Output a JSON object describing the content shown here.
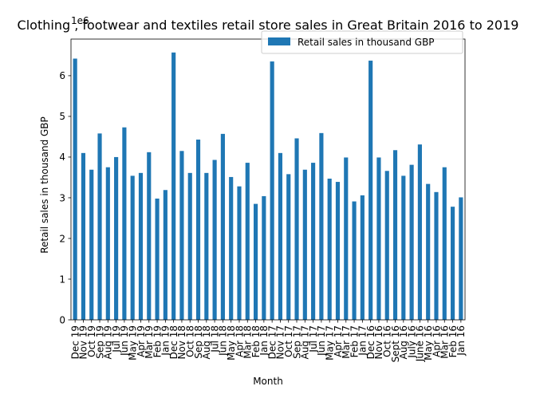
{
  "chart_data": {
    "type": "bar",
    "title": "Clothing , footwear and textiles retail store sales in Great Britain 2016 to 2019",
    "xlabel": "Month",
    "ylabel": "Retail sales in thousand GBP",
    "offset_text": "1e6",
    "ylim": [
      0,
      6900000
    ],
    "yticks": [
      0,
      1,
      2,
      3,
      4,
      5,
      6
    ],
    "grid": false,
    "legend_position": "top-right",
    "bar_color": "#1f77b4",
    "categories": [
      "Dec 19",
      "Nov 19",
      "Oct 19",
      "Sep 19",
      "Aug 19",
      "Jul 19",
      "Jun 19",
      "May 19",
      "Apr 19",
      "Mar 19",
      "Feb 19",
      "Jan 19",
      "Dec 18",
      "Nov 18",
      "Oct 18",
      "Sep 18",
      "Aug 18",
      "Jul 18",
      "Jun 18",
      "May 18",
      "Apr 18",
      "Mar 18",
      "Feb 18",
      "Jan 18",
      "Dec 17",
      "Nov 17",
      "Oct 17",
      "Sep 17",
      "Aug 17",
      "Jul 17",
      "Jun 17",
      "May 17",
      "Apr 17",
      "Mar 17",
      "Feb 17",
      "Jan 17",
      "Dec 16",
      "Nov 16",
      "Oct 16",
      "Sept 16",
      "Aug 16",
      "July 16",
      "June 16",
      "May 16",
      "Apr 16",
      "Mar 16",
      "Feb 16",
      "Jan 16"
    ],
    "series": [
      {
        "name": "Retail sales in thousand GBP",
        "values": [
          6420000,
          4100000,
          3690000,
          4580000,
          3750000,
          4000000,
          4730000,
          3540000,
          3610000,
          4120000,
          2980000,
          3190000,
          6570000,
          4150000,
          3610000,
          4430000,
          3610000,
          3930000,
          4570000,
          3510000,
          3280000,
          3860000,
          2850000,
          3040000,
          6350000,
          4100000,
          3580000,
          4460000,
          3690000,
          3860000,
          4590000,
          3470000,
          3390000,
          3990000,
          2910000,
          3060000,
          6370000,
          3990000,
          3660000,
          4170000,
          3540000,
          3810000,
          4310000,
          3340000,
          3140000,
          3750000,
          2780000,
          3010000
        ]
      }
    ]
  }
}
